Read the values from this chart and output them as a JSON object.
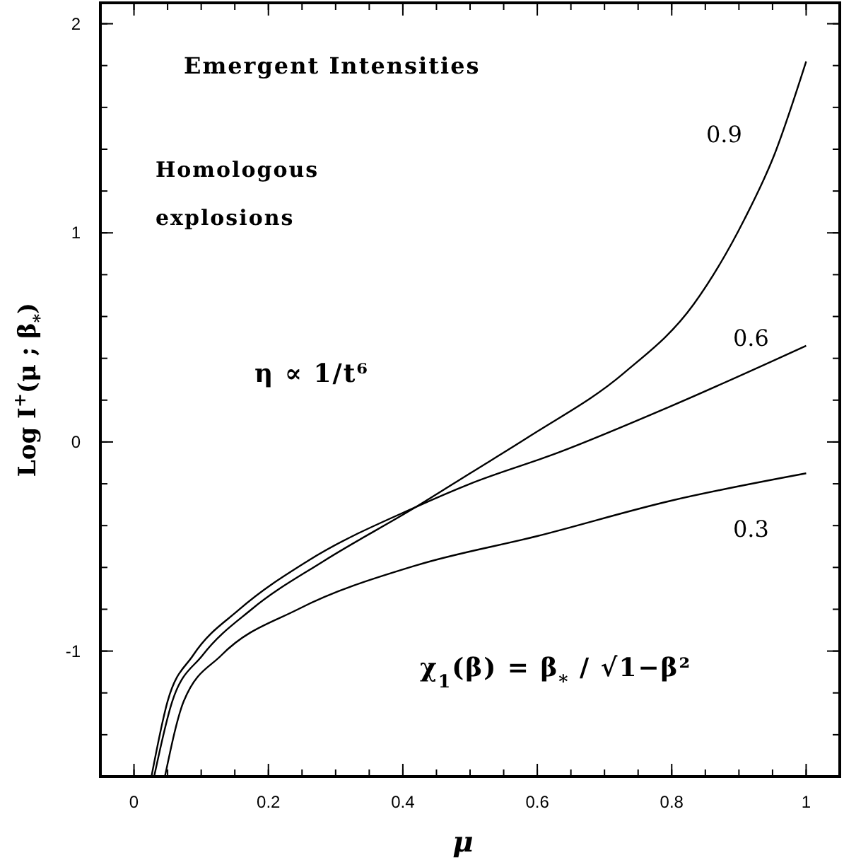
{
  "chart_data": {
    "type": "line",
    "title": "Emergent Intensities",
    "xlabel": "μ",
    "ylabel": "Log I$^{+}$(μ ; β$_{*}$)",
    "xlim": [
      -0.05,
      1.05
    ],
    "ylim": [
      -1.6,
      2.1
    ],
    "xticks": [
      0,
      0.2,
      0.4,
      0.6,
      0.8,
      1
    ],
    "yticks": [
      {
        "value": -1,
        "label": "-1"
      },
      0,
      1,
      2
    ],
    "annotations": [
      "Homologous explosions",
      "η ∝ 1/t⁶",
      "χ$_{1}$(β) = β$_{*}$ / √1−β²"
    ],
    "line_style": "solid",
    "series": [
      {
        "name": "0.9",
        "color": "#000000",
        "x": [
          0.03,
          0.057,
          0.102,
          0.175,
          0.282,
          0.42,
          0.5,
          0.59,
          0.729,
          0.833,
          0.909,
          0.951,
          1
        ],
        "values": [
          -1.6,
          -1.24,
          -1.02,
          -0.8,
          -0.57,
          -0.31,
          -0.15,
          0.03,
          0.33,
          0.66,
          1.07,
          1.36,
          1.82
        ]
      },
      {
        "name": "0.6",
        "color": "#000000",
        "x": [
          0.026,
          0.05,
          0.088,
          0.157,
          0.258,
          0.42,
          0.5,
          0.632,
          0.798,
          1
        ],
        "values": [
          -1.6,
          -1.24,
          -1.02,
          -0.8,
          -0.57,
          -0.31,
          -0.2,
          -0.05,
          0.17,
          0.46
        ]
      },
      {
        "name": "0.3",
        "color": "#000000",
        "x": [
          0.046,
          0.074,
          0.13,
          0.244,
          0.42,
          0.6,
          0.8,
          1
        ],
        "values": [
          -1.6,
          -1.24,
          -1.02,
          -0.8,
          -0.59,
          -0.45,
          -0.28,
          -0.15
        ]
      }
    ]
  }
}
